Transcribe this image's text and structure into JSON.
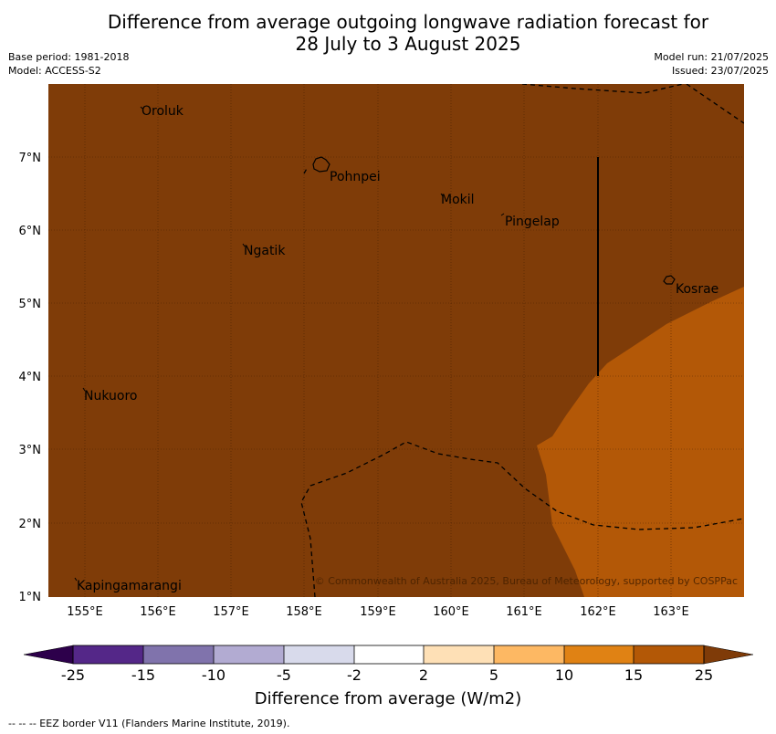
{
  "header": {
    "title_line1": "Difference from average outgoing longwave radiation forecast for",
    "title_line2": "28 July to 3 August 2025",
    "base_period": "Base period: 1981-2018",
    "model": "Model: ACCESS-S2",
    "model_run": "Model run: 21/07/2025",
    "issued": "Issued: 23/07/2025"
  },
  "map": {
    "lon_labels": [
      "155°E",
      "156°E",
      "157°E",
      "158°E",
      "159°E",
      "160°E",
      "161°E",
      "162°E",
      "163°E"
    ],
    "lat_labels": [
      "7°N",
      "6°N",
      "5°N",
      "4°N",
      "3°N",
      "2°N",
      "1°N"
    ],
    "places": [
      "Oroluk",
      "Pohnpei",
      "Mokil",
      "Pingelap",
      "Ngatik",
      "Kosrae",
      "Nukuoro",
      "Kapingamarangi"
    ],
    "copyright": "© Commonwealth of Australia 2025, Bureau of Meteorology, supported by COSPPac",
    "colors": {
      "high": "#7f3c08",
      "mid": "#b35807"
    }
  },
  "colorbar": {
    "ticks": [
      "-25",
      "-15",
      "-10",
      "-5",
      "-2",
      "2",
      "5",
      "10",
      "15",
      "25"
    ],
    "colors": [
      "#2d004b",
      "#542788",
      "#8073ac",
      "#b2abd2",
      "#d8daeb",
      "#ffffff",
      "#fee0b6",
      "#fdb863",
      "#e08214",
      "#b35806",
      "#7f3b08"
    ],
    "label": "Difference from average (W/m2)"
  },
  "footer": {
    "legend": "--  --  -- EEZ border V11 (Flanders Marine Institute, 2019)."
  }
}
